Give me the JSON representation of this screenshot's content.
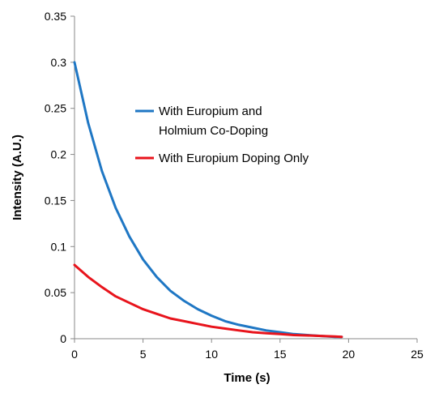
{
  "chart_data": {
    "type": "line",
    "title": "",
    "xlabel": "Time (s)",
    "ylabel": "Intensity (A.U.)",
    "xlim": [
      0,
      25
    ],
    "ylim": [
      0,
      0.35
    ],
    "x_ticks": [
      "0",
      "5",
      "10",
      "15",
      "20",
      "25"
    ],
    "y_ticks": [
      "0",
      "0.05",
      "0.1",
      "0.15",
      "0.2",
      "0.25",
      "0.3",
      "0.35"
    ],
    "grid": false,
    "legend_position": "upper-right",
    "series": [
      {
        "name_lines": [
          "With Europium and",
          "Holmium Co-Doping"
        ],
        "color": "#1f77c4",
        "x": [
          0,
          1,
          2,
          3,
          4,
          5,
          6,
          7,
          8,
          9,
          10,
          11,
          12,
          13,
          14,
          15,
          16,
          17,
          18,
          19,
          19.5
        ],
        "y": [
          0.3,
          0.234,
          0.182,
          0.142,
          0.111,
          0.086,
          0.067,
          0.052,
          0.041,
          0.032,
          0.025,
          0.019,
          0.015,
          0.012,
          0.009,
          0.007,
          0.005,
          0.004,
          0.003,
          0.002,
          0.002
        ]
      },
      {
        "name": "With Europium Doping Only",
        "color": "#e8141c",
        "x": [
          0,
          1,
          2,
          3,
          4,
          5,
          6,
          7,
          8,
          9,
          10,
          11,
          12,
          13,
          14,
          15,
          16,
          17,
          18,
          19,
          19.5
        ],
        "y": [
          0.08,
          0.067,
          0.056,
          0.046,
          0.039,
          0.032,
          0.027,
          0.022,
          0.019,
          0.016,
          0.013,
          0.011,
          0.009,
          0.007,
          0.006,
          0.005,
          0.004,
          0.0035,
          0.003,
          0.0025,
          0.002
        ]
      }
    ]
  }
}
